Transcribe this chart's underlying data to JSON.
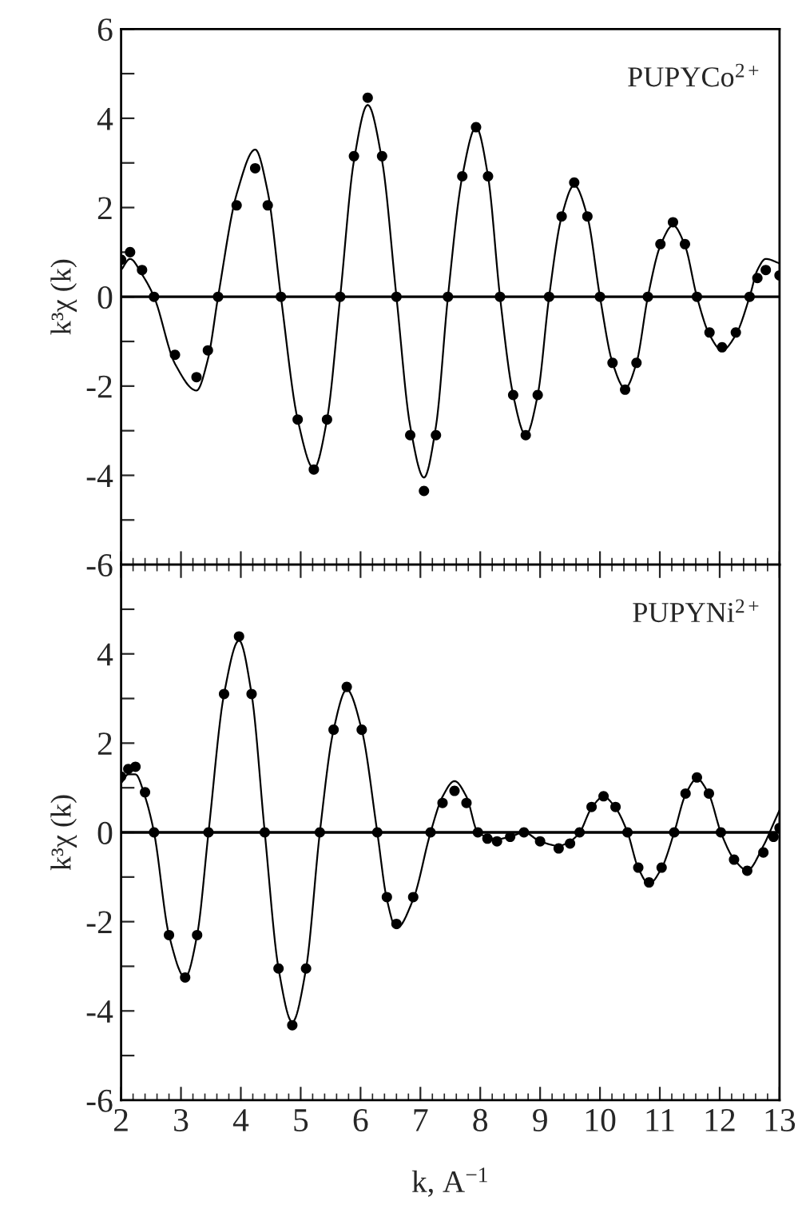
{
  "chart_data": [
    {
      "type": "scatter",
      "ylabel": "k³χ (k)",
      "annotations": [
        "PUPYCo$^{2+}$"
      ],
      "xlim": [
        2,
        13
      ],
      "ylim": [
        -6,
        6
      ],
      "xticks": [
        2,
        3,
        4,
        5,
        6,
        7,
        8,
        9,
        10,
        11,
        12,
        13
      ],
      "yticks": [
        -6,
        {
          "value": -5,
          "label": null
        },
        -4,
        {
          "value": -3,
          "label": null
        },
        -2,
        {
          "value": -1,
          "label": null
        },
        0,
        {
          "value": 1,
          "label": null
        },
        2,
        {
          "value": 3,
          "label": null
        },
        4,
        {
          "value": 5,
          "label": null
        },
        6
      ],
      "tick_labels": "y",
      "grid": false,
      "legend": false,
      "ref_lines": [
        {
          "axis": "y",
          "value": 0,
          "color": "#000000"
        }
      ],
      "series": [
        {
          "marker": "circle",
          "color": "#000000",
          "x": [
            2.0,
            2.15,
            2.35,
            2.55,
            2.9,
            3.26,
            3.45,
            3.62,
            3.93,
            4.24,
            4.45,
            4.67,
            4.95,
            5.22,
            5.44,
            5.66,
            5.89,
            6.12,
            6.36,
            6.6,
            6.83,
            7.06,
            7.26,
            7.46,
            7.7,
            7.93,
            8.13,
            8.33,
            8.55,
            8.76,
            8.96,
            9.15,
            9.36,
            9.57,
            9.79,
            10.0,
            10.21,
            10.42,
            10.61,
            10.8,
            11.01,
            11.22,
            11.42,
            11.62,
            11.83,
            12.04,
            12.27,
            12.5,
            12.63,
            12.77,
            13.0
          ],
          "values": [
            0.83,
            1.0,
            0.6,
            0,
            -1.3,
            -1.8,
            -1.2,
            0,
            2.05,
            2.88,
            2.05,
            0,
            -2.75,
            -3.87,
            -2.75,
            0,
            3.15,
            4.46,
            3.15,
            0,
            -3.1,
            -4.35,
            -3.1,
            0,
            2.7,
            3.8,
            2.7,
            0,
            -2.2,
            -3.1,
            -2.2,
            0,
            1.8,
            2.56,
            1.8,
            0,
            -1.48,
            -2.08,
            -1.48,
            0,
            1.18,
            1.67,
            1.18,
            0,
            -0.8,
            -1.13,
            -0.8,
            0,
            0.42,
            0.6,
            0.48
          ]
        },
        {
          "type": "line",
          "marker": "none",
          "line_style": "solid",
          "color": "#000000",
          "x": [
            2.0,
            2.15,
            2.35,
            2.55,
            2.9,
            3.26,
            3.45,
            3.62,
            3.93,
            4.24,
            4.45,
            4.67,
            4.95,
            5.22,
            5.44,
            5.66,
            5.89,
            6.12,
            6.36,
            6.6,
            6.83,
            7.06,
            7.26,
            7.46,
            7.7,
            7.93,
            8.13,
            8.33,
            8.55,
            8.76,
            8.96,
            9.15,
            9.36,
            9.57,
            9.79,
            10.0,
            10.21,
            10.42,
            10.61,
            10.8,
            11.01,
            11.22,
            11.42,
            11.62,
            11.83,
            12.04,
            12.27,
            12.5,
            12.63,
            12.77,
            13.0
          ],
          "values": [
            0.6,
            0.85,
            0.5,
            0,
            -1.5,
            -2.1,
            -1.4,
            0,
            2.3,
            3.3,
            2.35,
            0,
            -2.75,
            -3.85,
            -2.75,
            0,
            3.05,
            4.3,
            3.05,
            0,
            -2.9,
            -4.05,
            -2.9,
            0,
            2.7,
            3.8,
            2.7,
            0,
            -2.2,
            -3.1,
            -2.2,
            0,
            1.8,
            2.5,
            1.8,
            0,
            -1.48,
            -2.05,
            -1.48,
            0,
            1.15,
            1.6,
            1.15,
            0,
            -0.85,
            -1.2,
            -0.85,
            0,
            0.6,
            0.85,
            0.75
          ]
        }
      ]
    },
    {
      "type": "scatter",
      "ylabel": "k³χ (k)",
      "xlabel": "k, A$^{−1}$",
      "annotations": [
        "PUPYNi$^{2+}$"
      ],
      "xlim": [
        2,
        13
      ],
      "ylim": [
        -6,
        6
      ],
      "xticks": [
        2,
        3,
        4,
        5,
        6,
        7,
        8,
        9,
        10,
        11,
        12,
        13
      ],
      "yticks": [
        -6,
        {
          "value": -5,
          "label": null
        },
        -4,
        {
          "value": -3,
          "label": null
        },
        -2,
        {
          "value": -1,
          "label": null
        },
        0,
        {
          "value": 1,
          "label": null
        },
        2,
        {
          "value": 3,
          "label": null
        },
        4,
        {
          "value": 5,
          "label": null
        },
        {
          "value": 6,
          "label": null
        }
      ],
      "grid": false,
      "legend": false,
      "ref_lines": [
        {
          "axis": "y",
          "value": 0,
          "color": "#000000"
        }
      ],
      "series": [
        {
          "marker": "circle",
          "color": "#000000",
          "x": [
            2.0,
            2.12,
            2.24,
            2.4,
            2.55,
            2.8,
            3.07,
            3.27,
            3.46,
            3.72,
            3.97,
            4.18,
            4.4,
            4.63,
            4.86,
            5.09,
            5.32,
            5.55,
            5.77,
            6.02,
            6.28,
            6.44,
            6.6,
            6.88,
            7.17,
            7.37,
            7.57,
            7.77,
            7.96,
            8.12,
            8.28,
            8.5,
            8.73,
            9.0,
            9.31,
            9.5,
            9.66,
            9.86,
            10.06,
            10.26,
            10.46,
            10.64,
            10.82,
            11.03,
            11.24,
            11.43,
            11.62,
            11.82,
            12.02,
            12.24,
            12.46,
            12.73,
            12.9,
            13.0
          ],
          "values": [
            1.25,
            1.42,
            1.47,
            0.9,
            0,
            -2.3,
            -3.25,
            -2.3,
            0,
            3.1,
            4.39,
            3.1,
            0,
            -3.05,
            -4.32,
            -3.05,
            0,
            2.3,
            3.26,
            2.3,
            0,
            -1.45,
            -2.05,
            -1.45,
            0,
            0.66,
            0.93,
            0.66,
            0,
            -0.14,
            -0.2,
            -0.1,
            0.0,
            -0.2,
            -0.36,
            -0.25,
            0,
            0.57,
            0.81,
            0.57,
            0,
            -0.79,
            -1.12,
            -0.79,
            0,
            0.87,
            1.23,
            0.87,
            0,
            -0.61,
            -0.86,
            -0.45,
            -0.1,
            0.1
          ]
        },
        {
          "type": "line",
          "marker": "none",
          "line_style": "solid",
          "color": "#000000",
          "x": [
            2.0,
            2.12,
            2.24,
            2.4,
            2.55,
            2.8,
            3.07,
            3.27,
            3.46,
            3.72,
            3.97,
            4.18,
            4.4,
            4.63,
            4.86,
            5.09,
            5.32,
            5.55,
            5.77,
            6.02,
            6.28,
            6.44,
            6.6,
            6.88,
            7.17,
            7.37,
            7.57,
            7.77,
            7.96,
            8.12,
            8.28,
            8.5,
            8.73,
            9.0,
            9.31,
            9.5,
            9.66,
            9.86,
            10.06,
            10.26,
            10.46,
            10.64,
            10.82,
            11.03,
            11.24,
            11.43,
            11.62,
            11.82,
            12.02,
            12.24,
            12.46,
            12.73,
            12.9,
            13.0
          ],
          "values": [
            1.1,
            1.3,
            1.3,
            0.8,
            0,
            -2.3,
            -3.25,
            -2.3,
            0,
            3.1,
            4.3,
            3.1,
            0,
            -3.05,
            -4.25,
            -3.05,
            0,
            2.3,
            3.2,
            2.3,
            0,
            -1.5,
            -2.15,
            -1.5,
            0,
            0.8,
            1.15,
            0.8,
            0,
            -0.1,
            -0.15,
            -0.1,
            0.0,
            -0.2,
            -0.3,
            -0.2,
            0,
            0.55,
            0.8,
            0.55,
            0,
            -0.8,
            -1.15,
            -0.8,
            0,
            0.85,
            1.2,
            0.85,
            0,
            -0.6,
            -0.85,
            -0.3,
            0.2,
            0.5
          ]
        }
      ]
    }
  ]
}
